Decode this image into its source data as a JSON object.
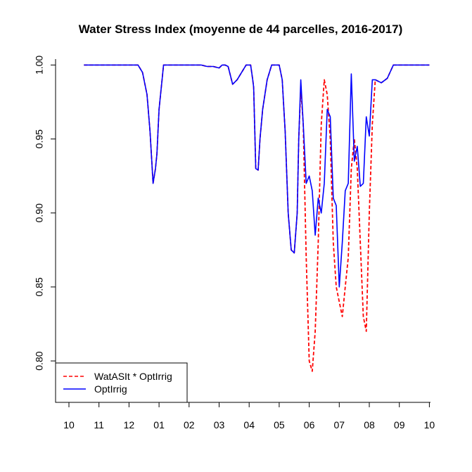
{
  "chart_data": {
    "type": "line",
    "title": "Water Stress Index (moyenne de 44 parcelles, 2016-2017)",
    "xlabel": "",
    "ylabel": "",
    "xlim": [
      0,
      12.3
    ],
    "ylim": [
      0.772,
      1.004
    ],
    "x_ticks": [
      {
        "pos": 0.0,
        "label": "10"
      },
      {
        "pos": 1.0,
        "label": "11"
      },
      {
        "pos": 2.0,
        "label": "12"
      },
      {
        "pos": 3.0,
        "label": "01"
      },
      {
        "pos": 4.0,
        "label": "02"
      },
      {
        "pos": 5.0,
        "label": "03"
      },
      {
        "pos": 6.0,
        "label": "04"
      },
      {
        "pos": 7.0,
        "label": "05"
      },
      {
        "pos": 8.0,
        "label": "06"
      },
      {
        "pos": 9.0,
        "label": "07"
      },
      {
        "pos": 10.0,
        "label": "08"
      },
      {
        "pos": 11.0,
        "label": "09"
      },
      {
        "pos": 12.0,
        "label": "10"
      }
    ],
    "y_ticks": [
      {
        "value": 0.8,
        "label": "0.80"
      },
      {
        "value": 0.85,
        "label": "0.85"
      },
      {
        "value": 0.9,
        "label": "0.90"
      },
      {
        "value": 0.95,
        "label": "0.95"
      },
      {
        "value": 1.0,
        "label": "1.00"
      }
    ],
    "legend_position": "bottom-left",
    "grid": false,
    "series": [
      {
        "name": "WatASIt * OptIrrig",
        "color": "#ff0000",
        "style": "dashed",
        "x": [
          0.5,
          1.0,
          1.5,
          2.0,
          2.3,
          2.45,
          2.6,
          2.7,
          2.8,
          2.88,
          2.93,
          3.0,
          3.1,
          3.15,
          3.3,
          3.6,
          4.0,
          4.4,
          4.6,
          4.8,
          5.0,
          5.1,
          5.2,
          5.3,
          5.45,
          5.6,
          5.75,
          5.9,
          6.0,
          6.05,
          6.12,
          6.15,
          6.22,
          6.3,
          6.36,
          6.45,
          6.6,
          6.75,
          6.8,
          6.9,
          7.0,
          7.1,
          7.2,
          7.3,
          7.4,
          7.5,
          7.6,
          7.65,
          7.72,
          7.8,
          7.9,
          8.0,
          8.1,
          8.2,
          8.3,
          8.4,
          8.5,
          8.6,
          8.7,
          8.8,
          8.9,
          9.0,
          9.1,
          9.2,
          9.3,
          9.4,
          9.5,
          9.6,
          9.7,
          9.8,
          9.9,
          10.0,
          10.1,
          10.2,
          10.4,
          10.6,
          10.8,
          11.0,
          11.5,
          12.0
        ],
        "y": [
          1.0,
          1.0,
          1.0,
          1.0,
          1.0,
          0.995,
          0.98,
          0.955,
          0.92,
          0.93,
          0.94,
          0.97,
          0.99,
          1.0,
          1.0,
          1.0,
          1.0,
          1.0,
          0.999,
          0.999,
          0.998,
          1.0,
          1.0,
          0.999,
          0.987,
          0.99,
          0.995,
          1.0,
          1.0,
          1.0,
          0.99,
          0.985,
          0.93,
          0.929,
          0.95,
          0.97,
          0.99,
          1.0,
          1.0,
          1.0,
          1.0,
          0.99,
          0.955,
          0.9,
          0.875,
          0.873,
          0.9,
          0.95,
          0.985,
          0.96,
          0.87,
          0.8,
          0.793,
          0.82,
          0.88,
          0.96,
          0.99,
          0.98,
          0.95,
          0.88,
          0.85,
          0.84,
          0.83,
          0.85,
          0.87,
          0.93,
          0.95,
          0.93,
          0.88,
          0.83,
          0.82,
          0.9,
          0.96,
          0.99,
          0.988,
          0.991,
          1.0,
          1.0,
          1.0,
          1.0
        ]
      },
      {
        "name": "OptIrrig",
        "color": "#0000ff",
        "style": "solid",
        "x": [
          0.5,
          1.0,
          1.5,
          2.0,
          2.3,
          2.45,
          2.6,
          2.7,
          2.8,
          2.88,
          2.93,
          3.0,
          3.1,
          3.15,
          3.3,
          3.6,
          4.0,
          4.4,
          4.6,
          4.8,
          5.0,
          5.1,
          5.2,
          5.3,
          5.45,
          5.6,
          5.75,
          5.9,
          6.0,
          6.05,
          6.12,
          6.15,
          6.22,
          6.3,
          6.36,
          6.45,
          6.6,
          6.75,
          6.8,
          6.9,
          7.0,
          7.1,
          7.2,
          7.3,
          7.4,
          7.5,
          7.6,
          7.65,
          7.72,
          7.8,
          7.9,
          8.0,
          8.1,
          8.2,
          8.3,
          8.4,
          8.5,
          8.6,
          8.7,
          8.8,
          8.9,
          9.0,
          9.1,
          9.2,
          9.3,
          9.4,
          9.5,
          9.6,
          9.7,
          9.8,
          9.9,
          10.0,
          10.1,
          10.2,
          10.4,
          10.6,
          10.8,
          11.0,
          11.5,
          12.0
        ],
        "y": [
          1.0,
          1.0,
          1.0,
          1.0,
          1.0,
          0.995,
          0.98,
          0.955,
          0.92,
          0.93,
          0.94,
          0.97,
          0.99,
          1.0,
          1.0,
          1.0,
          1.0,
          1.0,
          0.999,
          0.999,
          0.998,
          1.0,
          1.0,
          0.999,
          0.987,
          0.99,
          0.995,
          1.0,
          1.0,
          1.0,
          0.99,
          0.985,
          0.93,
          0.929,
          0.95,
          0.97,
          0.99,
          1.0,
          1.0,
          1.0,
          1.0,
          0.99,
          0.955,
          0.9,
          0.875,
          0.873,
          0.9,
          0.95,
          0.99,
          0.96,
          0.92,
          0.925,
          0.915,
          0.885,
          0.91,
          0.9,
          0.92,
          0.97,
          0.965,
          0.91,
          0.905,
          0.85,
          0.88,
          0.915,
          0.92,
          0.994,
          0.935,
          0.945,
          0.918,
          0.92,
          0.965,
          0.952,
          0.99,
          0.99,
          0.988,
          0.991,
          1.0,
          1.0,
          1.0,
          1.0
        ]
      }
    ]
  }
}
